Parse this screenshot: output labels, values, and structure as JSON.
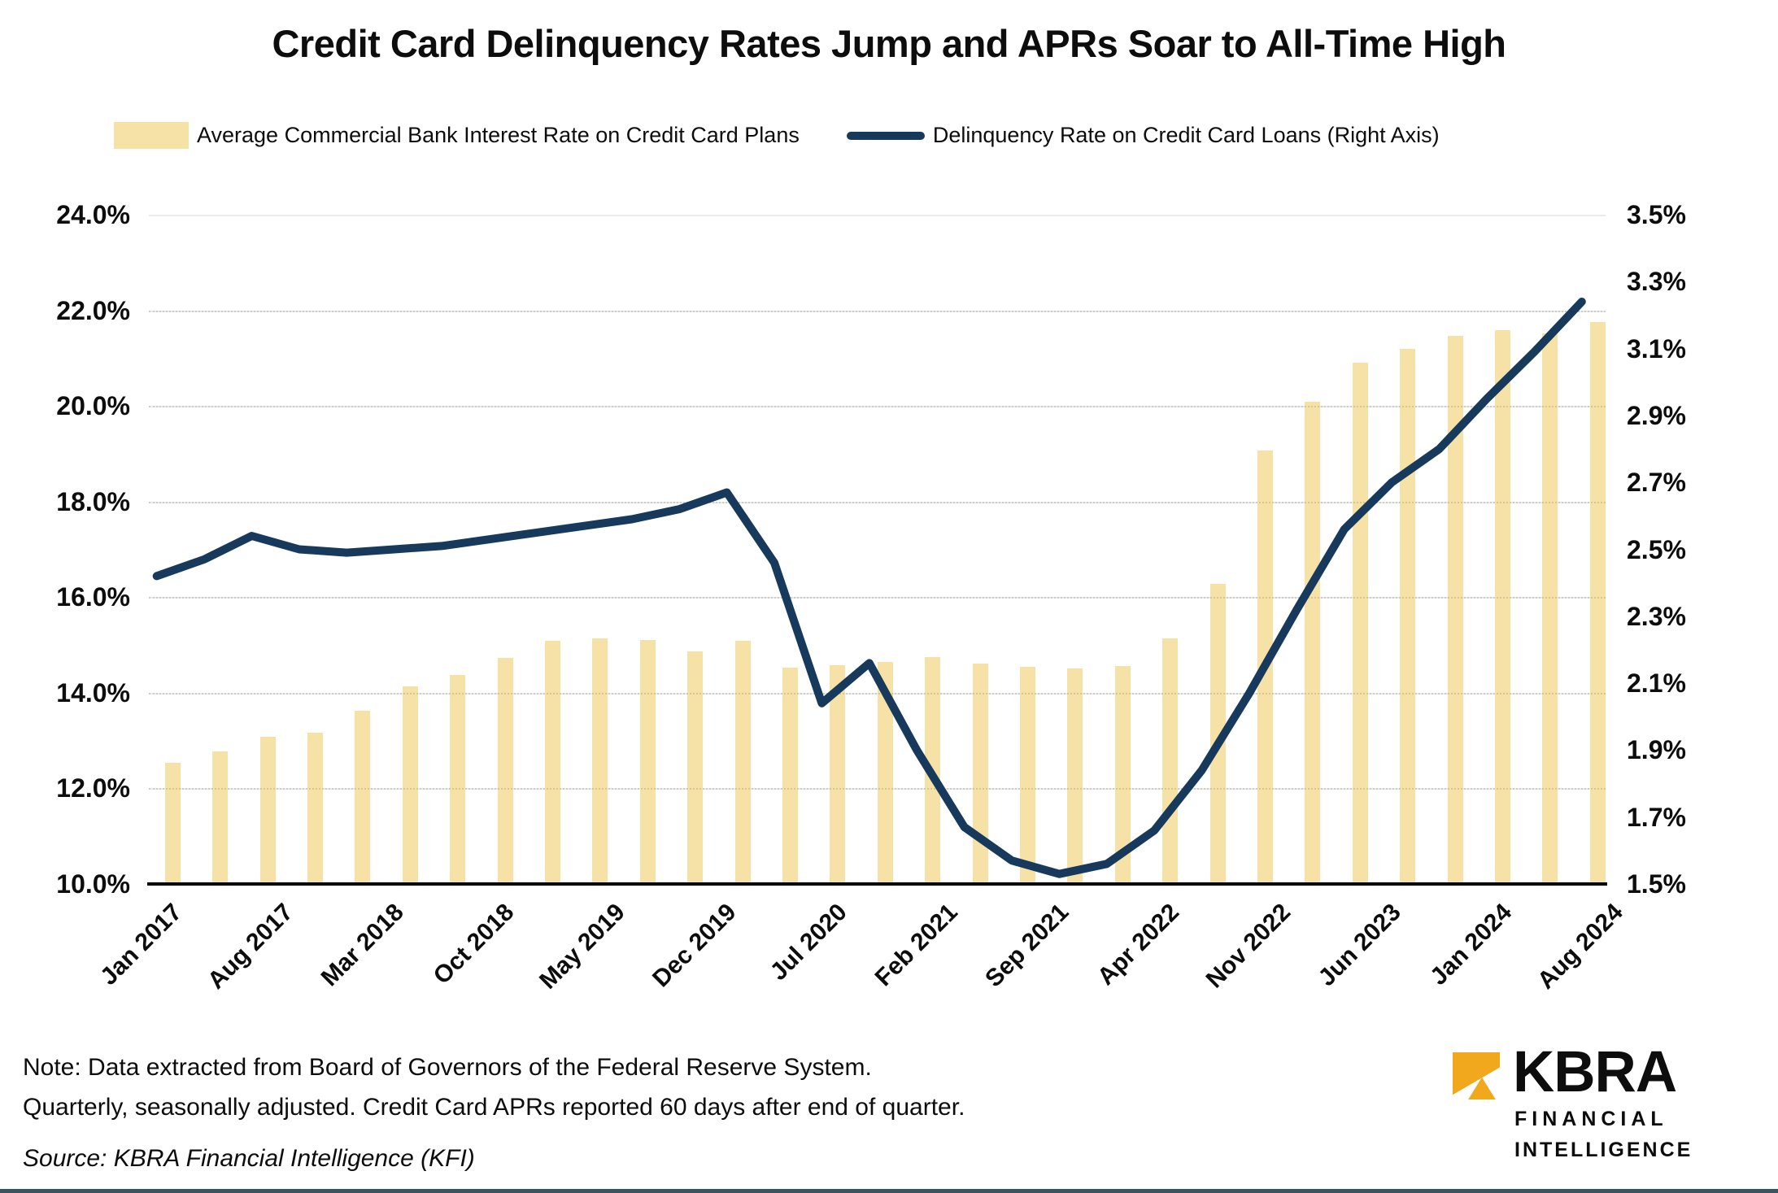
{
  "title": "Credit Card Delinquency Rates Jump and APRs Soar to All-Time High",
  "legend": [
    {
      "label": "Average Commercial Bank Interest Rate on Credit Card Plans",
      "swatch": "bar-swatch",
      "color": "#F6E2A7"
    },
    {
      "label": "Delinquency Rate on Credit Card Loans (Right Axis)",
      "swatch": "line-swatch",
      "color": "#16395C"
    }
  ],
  "notes": {
    "line1": "Note: Data extracted from Board of Governors of the Federal Reserve System.",
    "line2": "Quarterly, seasonally adjusted. Credit Card APRs reported 60 days after end of quarter.",
    "source": "Source: KBRA Financial Intelligence (KFI)"
  },
  "logo": {
    "brand": "KBRA",
    "line1": "FINANCIAL",
    "line2": "INTELLIGENCE",
    "icon": "kbra-gold-arrow-square",
    "icon_color": "#F2A81D"
  },
  "chart_data": {
    "type": "bar+line dual-axis, monthly category axis Jan 2017 - Aug 2024",
    "months_total": 92,
    "grid": "horizontal light gray at left-axis steps, black baseline",
    "x_axis": {
      "tick_labels": [
        "Jan 2017",
        "Aug 2017",
        "Mar 2018",
        "Oct 2018",
        "May 2019",
        "Dec 2019",
        "Jul 2020",
        "Feb 2021",
        "Sep 2021",
        "Apr 2022",
        "Nov 2022",
        "Jun 2023",
        "Jan 2024",
        "Aug 2024"
      ],
      "tick_months": [
        0,
        7,
        14,
        21,
        28,
        35,
        42,
        49,
        56,
        63,
        70,
        77,
        84,
        91
      ],
      "label_rotation_deg": -45
    },
    "left_axis": {
      "labels": [
        "24.0%",
        "22.0%",
        "20.0%",
        "18.0%",
        "16.0%",
        "14.0%",
        "12.0%",
        "10.0%"
      ],
      "min": 10.0,
      "max": 24.0,
      "step": 2.0
    },
    "right_axis": {
      "labels": [
        "3.5%",
        "3.3%",
        "3.1%",
        "2.9%",
        "2.7%",
        "2.5%",
        "2.3%",
        "2.1%",
        "1.9%",
        "1.7%",
        "1.5%"
      ],
      "min": 1.5,
      "max": 3.5,
      "step": 0.2
    },
    "series": [
      {
        "name": "Average Commercial Bank Interest Rate on Credit Card Plans",
        "type": "bar",
        "axis": "left",
        "color": "#F6E2A7",
        "months": [
          1,
          4,
          7,
          10,
          13,
          16,
          19,
          22,
          25,
          28,
          31,
          34,
          37,
          40,
          43,
          46,
          49,
          52,
          55,
          58,
          61,
          64,
          67,
          70,
          73,
          76,
          79,
          82,
          85,
          88,
          91
        ],
        "periods": [
          "Feb 2017",
          "May 2017",
          "Aug 2017",
          "Nov 2017",
          "Feb 2018",
          "May 2018",
          "Aug 2018",
          "Nov 2018",
          "Feb 2019",
          "May 2019",
          "Aug 2019",
          "Nov 2019",
          "Feb 2020",
          "May 2020",
          "Aug 2020",
          "Nov 2020",
          "Feb 2021",
          "May 2021",
          "Aug 2021",
          "Nov 2021",
          "Feb 2022",
          "May 2022",
          "Aug 2022",
          "Nov 2022",
          "Feb 2023",
          "May 2023",
          "Aug 2023",
          "Nov 2023",
          "Feb 2024",
          "May 2024",
          "Aug 2024"
        ],
        "values": [
          12.54,
          12.77,
          13.08,
          13.16,
          13.63,
          14.14,
          14.38,
          14.73,
          15.09,
          15.13,
          15.1,
          14.87,
          15.09,
          14.52,
          14.58,
          14.65,
          14.75,
          14.61,
          14.54,
          14.51,
          14.56,
          15.13,
          16.27,
          19.07,
          20.09,
          20.9,
          21.19,
          21.47,
          21.59,
          21.51,
          21.76
        ]
      },
      {
        "name": "Delinquency Rate on Credit Card Loans",
        "type": "line",
        "axis": "right",
        "color": "#16395C",
        "stroke_width": 10,
        "months": [
          0,
          3,
          6,
          9,
          12,
          15,
          18,
          21,
          24,
          27,
          30,
          33,
          36,
          39,
          42,
          45,
          48,
          51,
          54,
          57,
          60,
          63,
          66,
          69,
          72,
          75,
          78,
          81,
          84,
          87,
          90
        ],
        "periods": [
          "2017 Q1",
          "2017 Q2",
          "2017 Q3",
          "2017 Q4",
          "2018 Q1",
          "2018 Q2",
          "2018 Q3",
          "2018 Q4",
          "2019 Q1",
          "2019 Q2",
          "2019 Q3",
          "2019 Q4",
          "2020 Q1",
          "2020 Q2",
          "2020 Q3",
          "2020 Q4",
          "2021 Q1",
          "2021 Q2",
          "2021 Q3",
          "2021 Q4",
          "2022 Q1",
          "2022 Q2",
          "2022 Q3",
          "2022 Q4",
          "2023 Q1",
          "2023 Q2",
          "2023 Q3",
          "2023 Q4",
          "2024 Q1",
          "2024 Q2",
          "2024 Q3"
        ],
        "values": [
          2.42,
          2.47,
          2.54,
          2.5,
          2.49,
          2.5,
          2.51,
          2.53,
          2.55,
          2.57,
          2.59,
          2.62,
          2.67,
          2.46,
          2.04,
          2.16,
          1.9,
          1.67,
          1.57,
          1.53,
          1.56,
          1.66,
          1.84,
          2.07,
          2.32,
          2.56,
          2.7,
          2.8,
          2.95,
          3.09,
          3.24
        ]
      }
    ]
  }
}
